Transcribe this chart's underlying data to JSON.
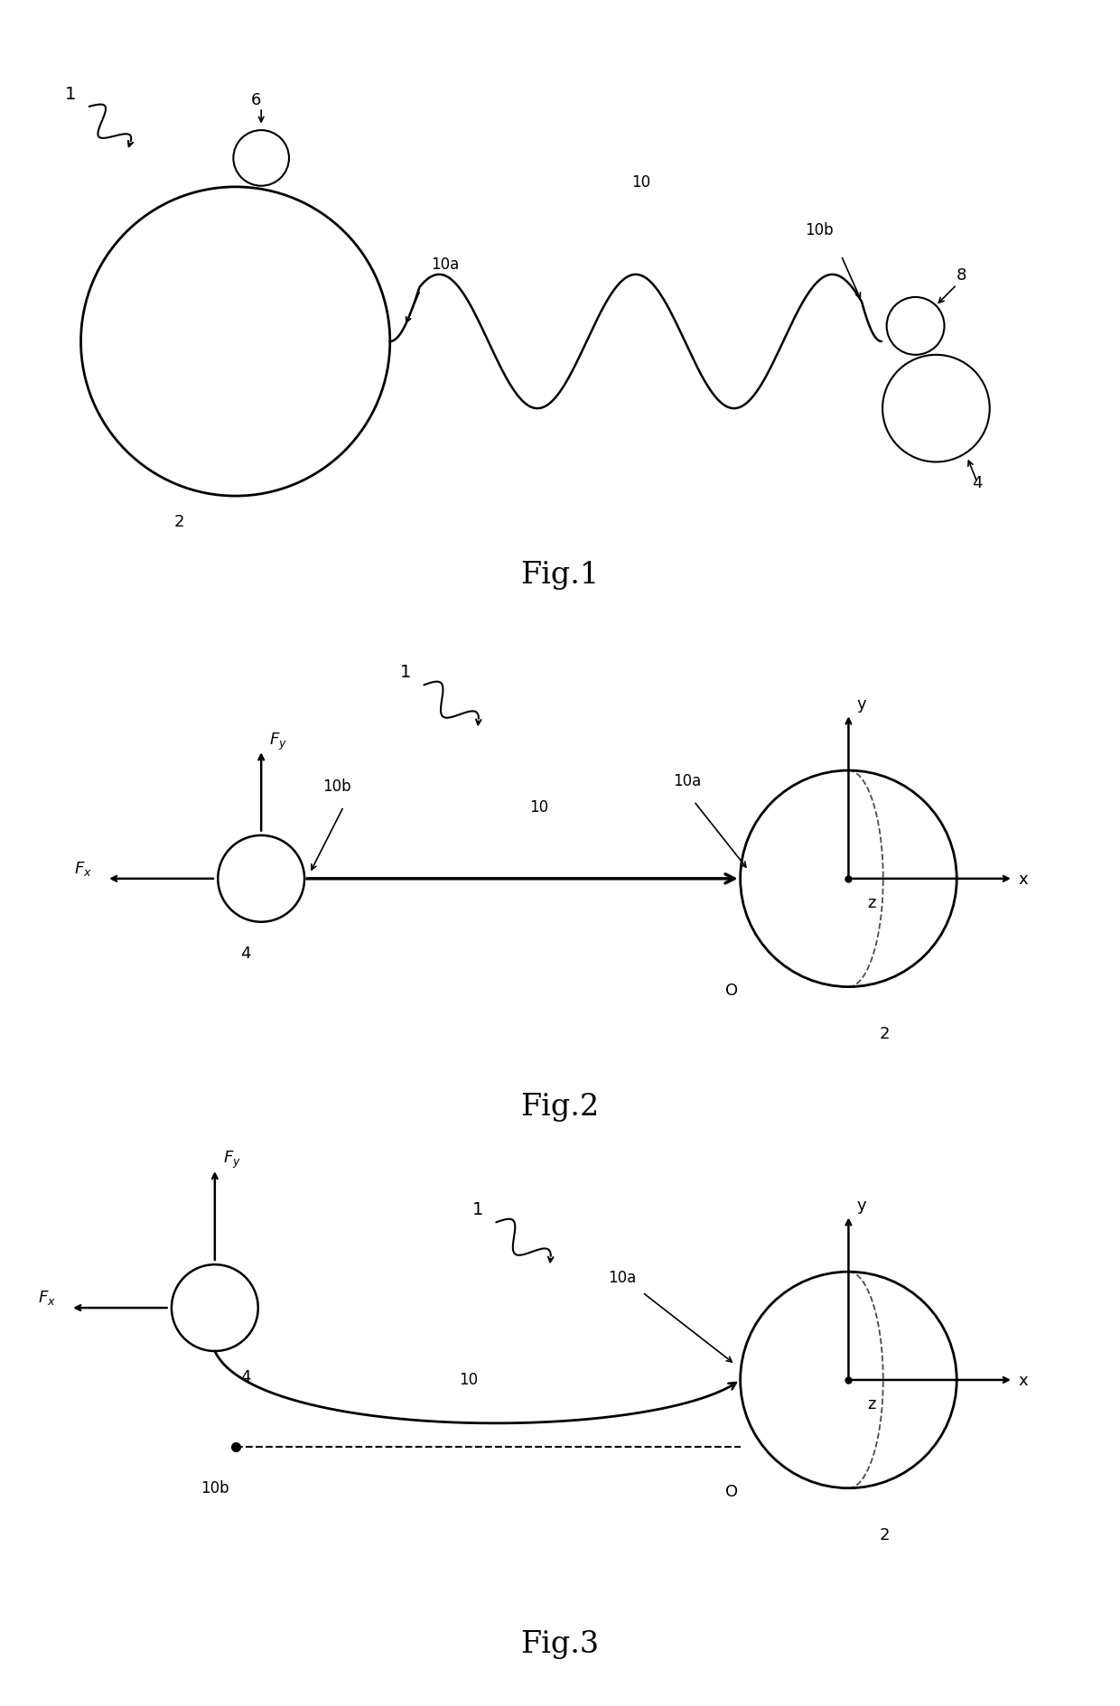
{
  "background_color": "#ffffff",
  "line_color": "#000000",
  "fig1_label": "Fig.1",
  "fig2_label": "Fig.2",
  "fig3_label": "Fig.3"
}
